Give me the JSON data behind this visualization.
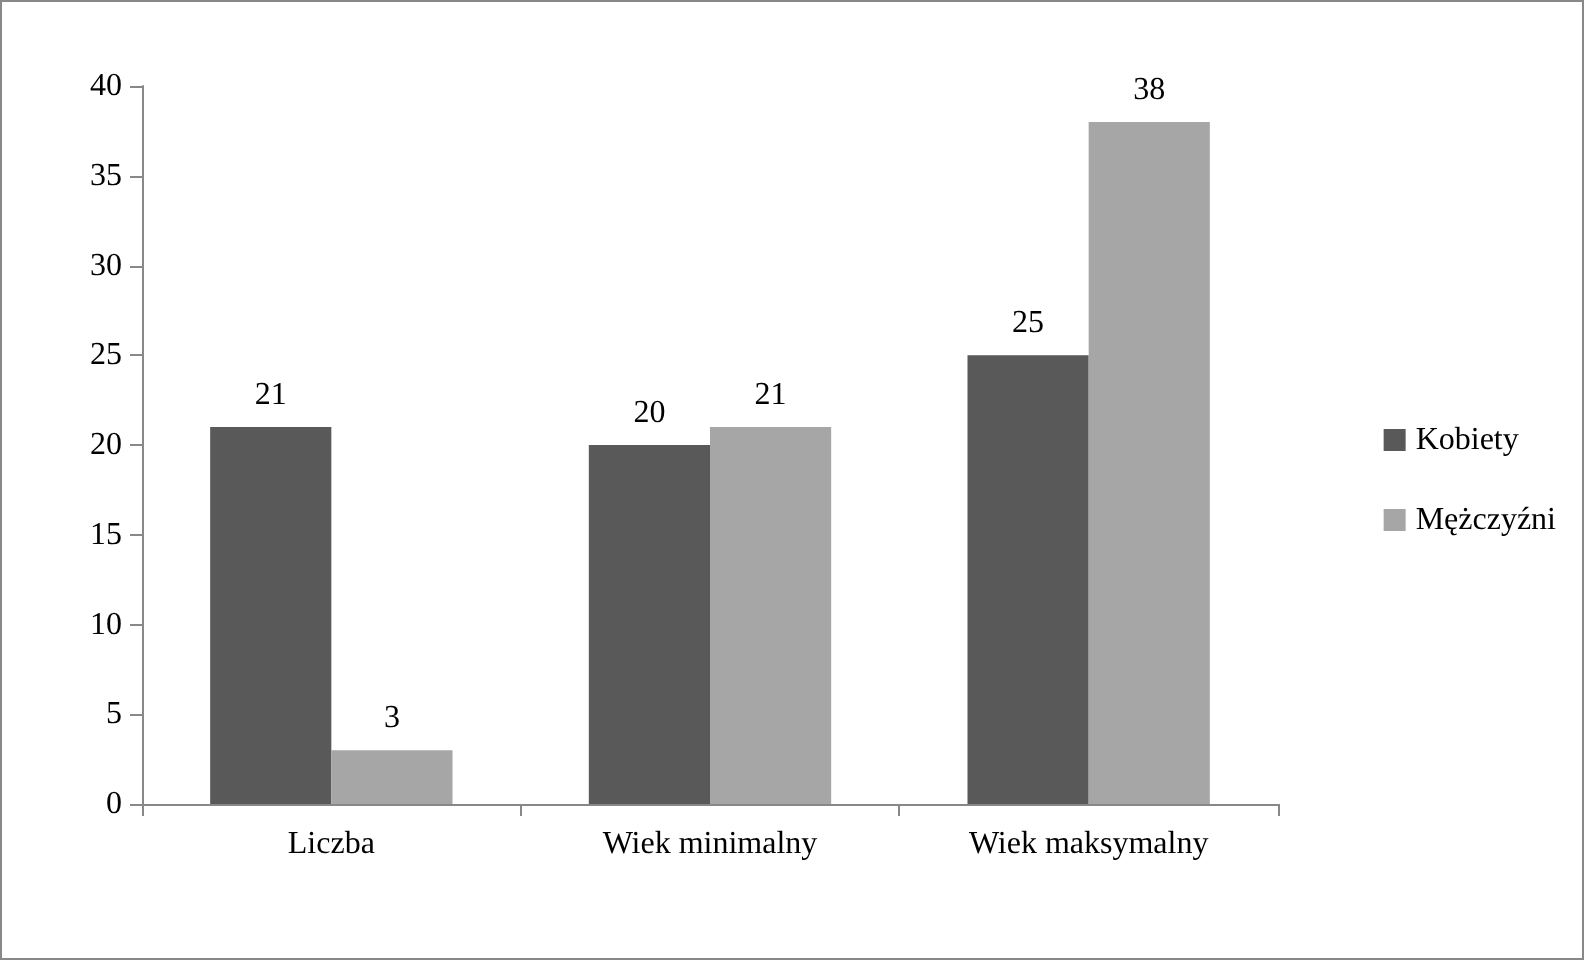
{
  "chart_data": {
    "type": "bar",
    "categories": [
      "Liczba",
      "Wiek minimalny",
      "Wiek maksymalny"
    ],
    "series": [
      {
        "name": "Kobiety",
        "color": "#595959",
        "values": [
          21,
          20,
          25
        ]
      },
      {
        "name": "Mężczyźni",
        "color": "#a6a6a6",
        "values": [
          3,
          21,
          38
        ]
      }
    ],
    "ylim": [
      0,
      40
    ],
    "yticks": [
      0,
      5,
      10,
      15,
      20,
      25,
      30,
      35,
      40
    ],
    "grid": false,
    "legend": "right",
    "data_labels": true
  }
}
